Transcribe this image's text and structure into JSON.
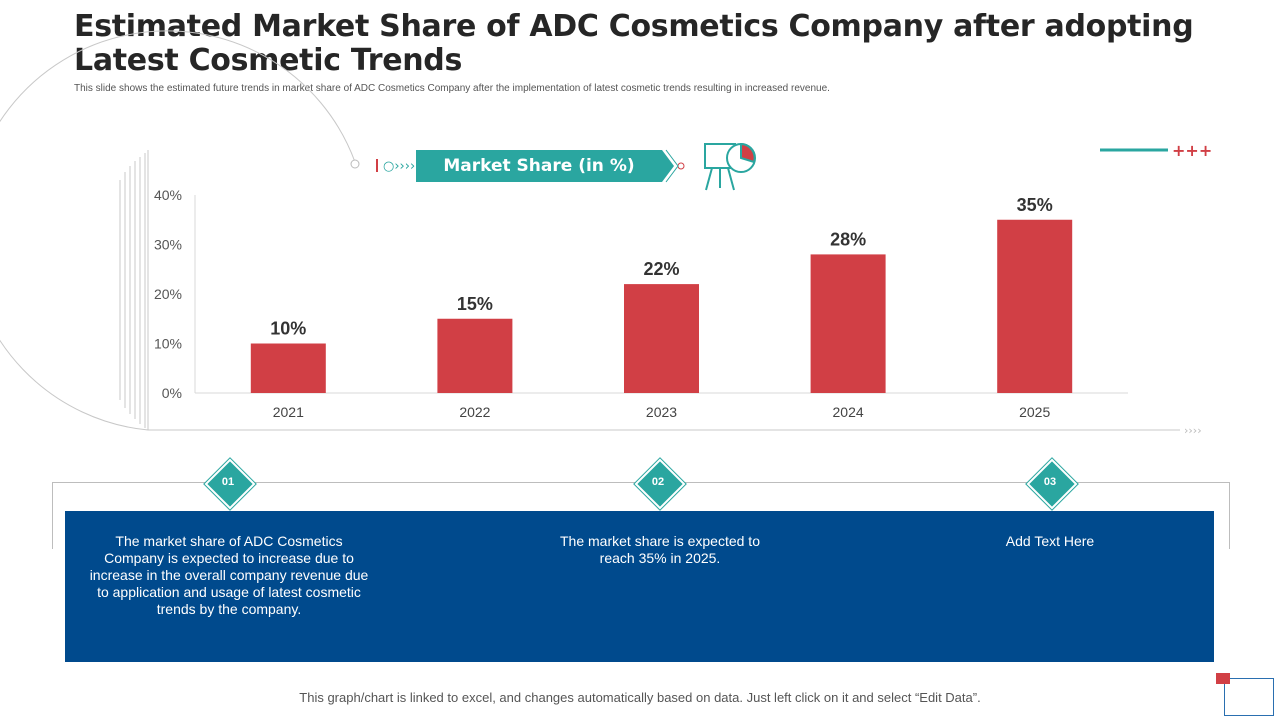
{
  "header": {
    "title": "Estimated Market Share of ADC Cosmetics Company after adopting Latest Cosmetic Trends",
    "subtitle": "This slide shows the estimated future trends in market share of ADC Cosmetics Company after the implementation of latest cosmetic trends resulting in increased revenue."
  },
  "banner": {
    "label": "Market Share (in %)"
  },
  "chart_data": {
    "type": "bar",
    "categories": [
      "2021",
      "2022",
      "2023",
      "2024",
      "2025"
    ],
    "values": [
      10,
      15,
      22,
      28,
      35
    ],
    "data_labels": [
      "10%",
      "15%",
      "22%",
      "28%",
      "35%"
    ],
    "ylim": [
      0,
      40
    ],
    "yticks": [
      "0%",
      "10%",
      "20%",
      "30%",
      "40%"
    ],
    "ytick_values": [
      0,
      10,
      20,
      30,
      40
    ],
    "grid": false,
    "bar_color": "#d13f45"
  },
  "steps": [
    {
      "num": "01",
      "text": "The market share of ADC Cosmetics Company is expected to increase due to increase in the overall company revenue due to application and usage of latest cosmetic trends by the company."
    },
    {
      "num": "02",
      "text": "The market share is expected to reach 35% in 2025."
    },
    {
      "num": "03",
      "text": "Add Text Here"
    }
  ],
  "footer": {
    "note": "This graph/chart is linked to excel,  and changes  automatically based on data.  Just left click on it and select  “Edit Data”."
  },
  "colors": {
    "accent_teal": "#2aa6a0",
    "accent_red": "#d13f45",
    "panel_blue": "#004a8d"
  },
  "icons": {
    "chart_board": "presentation-chart-icon"
  }
}
